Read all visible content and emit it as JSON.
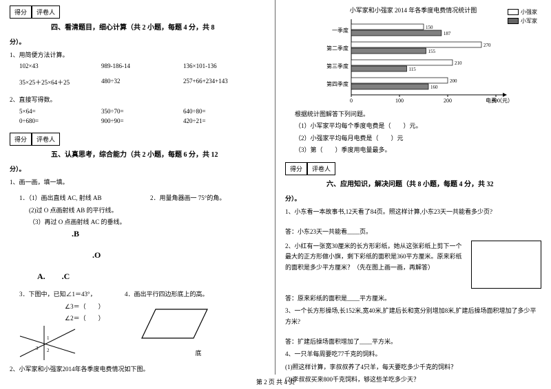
{
  "left": {
    "score_label": "得分",
    "grader_label": "评卷人",
    "sec4_title": "四、看清题目，细心计算（共 2 小题，每题 4 分，共 8",
    "sec4_title2": "分）。",
    "q1": "1、用简便方法计算。",
    "c1a": "102×43",
    "c1b": "989-186-14",
    "c1c": "136×101-136",
    "c2a": "35×25＋25×64＋25",
    "c2b": "480÷32",
    "c2c": "257+66+234+143",
    "q2": "2、直接写得数。",
    "d1a": "5×64=",
    "d1b": "350÷70=",
    "d1c": "640÷80=",
    "d2a": "0÷680=",
    "d2b": "900÷90=",
    "d2c": "420÷21=",
    "sec5_title": "五、认真思考，综合能力（共 2 小题，每题 6 分，共 12",
    "sec5_title2": "分）。",
    "p1": "1、画一画，填一填。",
    "p1_1": "1．（1）画出直线 AC, 射线 AB",
    "p1_1r": "2．用量角器画一 75°的角。",
    "p1_2": "(2)过 O 点画射线 AB 的平行线。",
    "p1_3": "（3）再过 O 点画射线 AC 的垂线。",
    "ptB": ".B",
    "ptO": ".O",
    "ptA": "A.",
    "ptC": ".C",
    "p3": "3．下图中，已知∠1＝43°，",
    "p3r": "4．画出平行四边形底上的高。",
    "ang3": "∠3＝（　　）",
    "ang2": "∠2＝（　　）",
    "bottom_label": "底",
    "p2": "2、小军家和小强家2014年各季度电费情况如下图。"
  },
  "right": {
    "chart_title": "小军家和小强家 2014 年各季度电费情况统计图",
    "legend1": "小强家",
    "legend2": "小军家",
    "quarters": [
      "一季度",
      "第二季度",
      "第三季度",
      "第四季度"
    ],
    "v_strong": [
      150,
      270,
      210,
      200
    ],
    "v_army": [
      187,
      155,
      115,
      160
    ],
    "xticks": [
      "0",
      "100",
      "200",
      "300"
    ],
    "xlabel": "电费（元）",
    "chart_colors": {
      "strong": "#ffffff",
      "army": "#808080",
      "axis": "#000000"
    },
    "cq": "根据统计图解答下列问题。",
    "cq1": "（1）小军家平均每个季度电费是（　　）元。",
    "cq2": "（2）小强家平均每月电费是（　　）元",
    "cq3": "（3）第（　　）季度用电量最多。",
    "score_label": "得分",
    "grader_label": "评卷人",
    "sec6_title": "六、应用知识，解决问题（共 8 小题，每题 4 分，共 32",
    "sec6_title2": "分）。",
    "a1": "1、小东看一本故事书,12天看了84页。照这样计算,小东23天一共能看多少页?",
    "a1ans": "答：小东23天一共能看____页。",
    "a2": "2、小红有一张宽30厘米的长方形彩纸，她从这张彩纸上剪下一个最大的正方形做小旗，剩下彩纸的面积是360平方厘米。原来彩纸的面积是多少平方厘米？（先在图上画一画，再解答）",
    "a2ans": "答：原来彩纸的面积是____平方厘米。",
    "a3": "3、一个长方形操场,长152米,宽40米,扩建后长和宽分别增加8米,扩建后操场面积增加了多少平方米?",
    "a3ans": "答：扩建后操场面积增加了____平方米。",
    "a4": "4、一只羊每周要吃77千克的饲料。",
    "a4_1": "(1)照这样计算，李叔叔养了4只羊，每天要吃多少千克的饲料？",
    "a4_2": "(2)李叔叔买来800千克饲料，够这些羊吃多少天？"
  },
  "footer": "第 2 页  共 4 页"
}
